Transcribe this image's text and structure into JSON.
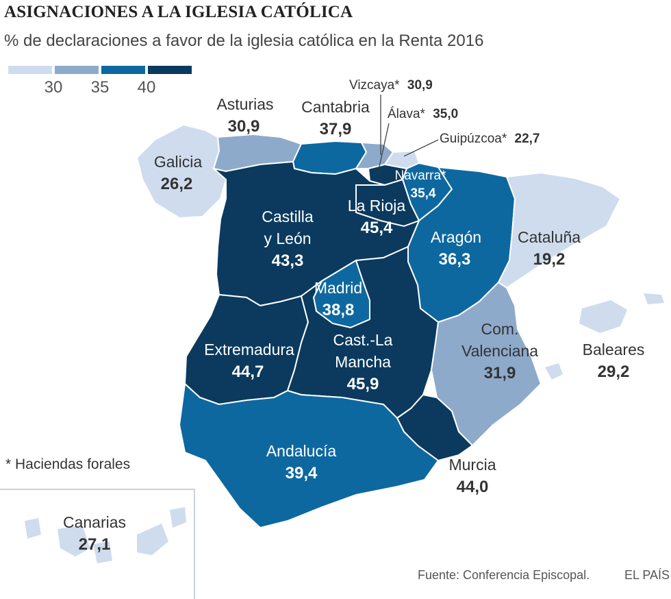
{
  "title": "ASIGNACIONES A LA IGLESIA CATÓLICA",
  "subtitle": "% de declaraciones a favor de la iglesia católica en la Renta 2016",
  "legend": {
    "ticks": [
      "30",
      "35",
      "40"
    ],
    "colors": [
      "#cfdcee",
      "#8eaacb",
      "#0e68a0",
      "#0b3a5e"
    ]
  },
  "regions": {
    "galicia": {
      "name": "Galicia",
      "value": "26,2"
    },
    "asturias": {
      "name": "Asturias",
      "value": "30,9"
    },
    "cantabria": {
      "name": "Cantabria",
      "value": "37,9"
    },
    "vizcaya": {
      "name": "Vizcaya*",
      "value": "30,9"
    },
    "alava": {
      "name": "Álava*",
      "value": "35,0"
    },
    "guipuzcoa": {
      "name": "Guipúzcoa*",
      "value": "22,7"
    },
    "navarra": {
      "name": "Navarra*",
      "value": "35,4"
    },
    "larioja": {
      "name": "La Rioja",
      "value": "45,4"
    },
    "castillaleon": {
      "name1": "Castilla",
      "name2": "y León",
      "value": "43,3"
    },
    "aragon": {
      "name": "Aragón",
      "value": "36,3"
    },
    "cataluna": {
      "name": "Cataluña",
      "value": "19,2"
    },
    "madrid": {
      "name": "Madrid",
      "value": "38,8"
    },
    "extremadura": {
      "name": "Extremadura",
      "value": "44,7"
    },
    "castillamancha": {
      "name1": "Cast.-La",
      "name2": "Mancha",
      "value": "45,9"
    },
    "valenciana": {
      "name1": "Com.",
      "name2": "Valenciana",
      "value": "31,9"
    },
    "baleares": {
      "name": "Baleares",
      "value": "29,2"
    },
    "andalucia": {
      "name": "Andalucía",
      "value": "39,4"
    },
    "murcia": {
      "name": "Murcia",
      "value": "44,0"
    },
    "canarias": {
      "name": "Canarias",
      "value": "27,1"
    }
  },
  "note": "* Haciendas forales",
  "source": "Fuente: Conferencia Episcopal.",
  "brand": "EL PAÍS"
}
